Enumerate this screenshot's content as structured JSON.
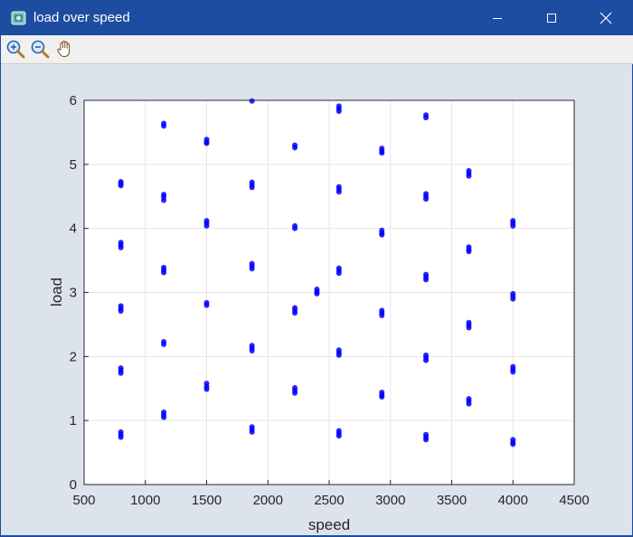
{
  "window": {
    "title": "load over speed",
    "accent": "#1c4da0"
  },
  "toolbar": {
    "tools": [
      "zoom-in-icon",
      "zoom-out-icon",
      "pan-hand-icon"
    ]
  },
  "chart_data": {
    "type": "scatter",
    "title": "",
    "xlabel": "speed",
    "ylabel": "load",
    "xlim": [
      500,
      4500
    ],
    "ylim": [
      0,
      6
    ],
    "xticks": [
      500,
      1000,
      1500,
      2000,
      2500,
      3000,
      3500,
      4000,
      4500
    ],
    "yticks": [
      0,
      1,
      2,
      3,
      4,
      5,
      6
    ],
    "grid": true,
    "marker_color": "#0000ff",
    "points": [
      [
        800,
        4.73
      ],
      [
        800,
        4.7
      ],
      [
        800,
        4.67
      ],
      [
        800,
        3.78
      ],
      [
        800,
        3.74
      ],
      [
        800,
        3.7
      ],
      [
        800,
        2.79
      ],
      [
        800,
        2.75
      ],
      [
        800,
        2.71
      ],
      [
        800,
        1.82
      ],
      [
        800,
        1.78
      ],
      [
        800,
        1.74
      ],
      [
        800,
        0.82
      ],
      [
        800,
        0.78
      ],
      [
        800,
        0.74
      ],
      [
        1150,
        5.64
      ],
      [
        1150,
        5.6
      ],
      [
        1150,
        4.53
      ],
      [
        1150,
        4.49
      ],
      [
        1150,
        4.44
      ],
      [
        1150,
        3.39
      ],
      [
        1150,
        3.35
      ],
      [
        1150,
        3.31
      ],
      [
        1150,
        2.23
      ],
      [
        1150,
        2.19
      ],
      [
        1150,
        1.13
      ],
      [
        1150,
        1.09
      ],
      [
        1150,
        1.05
      ],
      [
        1500,
        5.39
      ],
      [
        1500,
        5.35
      ],
      [
        1500,
        5.33
      ],
      [
        1500,
        4.12
      ],
      [
        1500,
        4.08
      ],
      [
        1500,
        4.04
      ],
      [
        1500,
        2.84
      ],
      [
        1500,
        2.8
      ],
      [
        1500,
        1.58
      ],
      [
        1500,
        1.53
      ],
      [
        1500,
        1.49
      ],
      [
        1870,
        5.99
      ],
      [
        1870,
        4.72
      ],
      [
        1870,
        4.68
      ],
      [
        1870,
        4.64
      ],
      [
        1870,
        3.45
      ],
      [
        1870,
        3.41
      ],
      [
        1870,
        3.37
      ],
      [
        1870,
        2.17
      ],
      [
        1870,
        2.13
      ],
      [
        1870,
        2.09
      ],
      [
        1870,
        0.9
      ],
      [
        1870,
        0.86
      ],
      [
        1870,
        0.82
      ],
      [
        2220,
        5.3
      ],
      [
        2220,
        5.26
      ],
      [
        2220,
        4.04
      ],
      [
        2220,
        4.0
      ],
      [
        2220,
        2.76
      ],
      [
        2220,
        2.72
      ],
      [
        2220,
        2.68
      ],
      [
        2220,
        1.51
      ],
      [
        2220,
        1.47
      ],
      [
        2220,
        1.43
      ],
      [
        2400,
        3.05
      ],
      [
        2400,
        3.01
      ],
      [
        2400,
        2.98
      ],
      [
        2580,
        5.91
      ],
      [
        2580,
        5.87
      ],
      [
        2580,
        5.83
      ],
      [
        2580,
        4.65
      ],
      [
        2580,
        4.61
      ],
      [
        2580,
        4.57
      ],
      [
        2580,
        3.38
      ],
      [
        2580,
        3.34
      ],
      [
        2580,
        3.3
      ],
      [
        2580,
        2.1
      ],
      [
        2580,
        2.06
      ],
      [
        2580,
        2.02
      ],
      [
        2580,
        0.84
      ],
      [
        2580,
        0.8
      ],
      [
        2580,
        0.76
      ],
      [
        2930,
        5.25
      ],
      [
        2930,
        5.21
      ],
      [
        2930,
        5.18
      ],
      [
        2930,
        3.97
      ],
      [
        2930,
        3.93
      ],
      [
        2930,
        3.9
      ],
      [
        2930,
        2.72
      ],
      [
        2930,
        2.68
      ],
      [
        2930,
        2.64
      ],
      [
        2930,
        1.44
      ],
      [
        2930,
        1.4
      ],
      [
        2930,
        1.37
      ],
      [
        3290,
        5.77
      ],
      [
        3290,
        5.73
      ],
      [
        3290,
        4.54
      ],
      [
        3290,
        4.5
      ],
      [
        3290,
        4.46
      ],
      [
        3290,
        3.28
      ],
      [
        3290,
        3.24
      ],
      [
        3290,
        3.2
      ],
      [
        3290,
        2.02
      ],
      [
        3290,
        1.98
      ],
      [
        3290,
        1.94
      ],
      [
        3290,
        0.78
      ],
      [
        3290,
        0.74
      ],
      [
        3290,
        0.7
      ],
      [
        3640,
        4.9
      ],
      [
        3640,
        4.86
      ],
      [
        3640,
        4.82
      ],
      [
        3640,
        3.71
      ],
      [
        3640,
        3.67
      ],
      [
        3640,
        3.64
      ],
      [
        3640,
        2.53
      ],
      [
        3640,
        2.49
      ],
      [
        3640,
        2.45
      ],
      [
        3640,
        1.34
      ],
      [
        3640,
        1.3
      ],
      [
        3640,
        1.26
      ],
      [
        4000,
        4.12
      ],
      [
        4000,
        4.08
      ],
      [
        4000,
        4.04
      ],
      [
        4000,
        2.98
      ],
      [
        4000,
        2.94
      ],
      [
        4000,
        2.9
      ],
      [
        4000,
        1.84
      ],
      [
        4000,
        1.8
      ],
      [
        4000,
        1.76
      ],
      [
        4000,
        0.7
      ],
      [
        4000,
        0.66
      ],
      [
        4000,
        0.63
      ]
    ]
  }
}
